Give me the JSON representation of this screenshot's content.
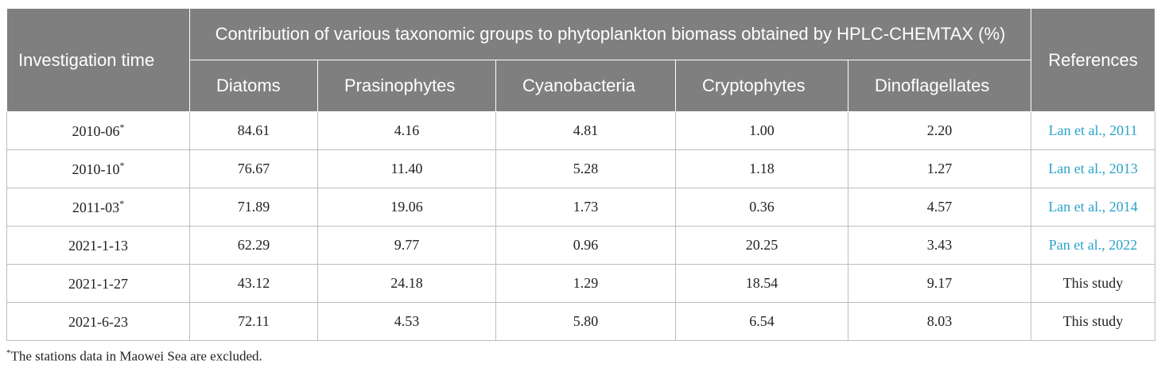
{
  "table": {
    "header": {
      "investigation_time": "Investigation time",
      "group_title": "Contribution of various taxonomic groups to phytoplankton biomass obtained by HPLC-CHEMTAX (%)",
      "references": "References",
      "groups": [
        "Diatoms",
        "Prasinophytes",
        "Cyanobacteria",
        "Cryptophytes",
        "Dinoflagellates"
      ]
    },
    "rows": [
      {
        "time": "2010-06",
        "mark": "*",
        "values": [
          "84.61",
          "4.16",
          "4.81",
          "1.00",
          "2.20"
        ],
        "ref": "Lan et al., 2011",
        "ref_link": true
      },
      {
        "time": "2010-10",
        "mark": "*",
        "values": [
          "76.67",
          "11.40",
          "5.28",
          "1.18",
          "1.27"
        ],
        "ref": "Lan et al., 2013",
        "ref_link": true
      },
      {
        "time": "2011-03",
        "mark": "*",
        "values": [
          "71.89",
          "19.06",
          "1.73",
          "0.36",
          "4.57"
        ],
        "ref": "Lan et al., 2014",
        "ref_link": true
      },
      {
        "time": "2021-1-13",
        "mark": "",
        "values": [
          "62.29",
          "9.77",
          "0.96",
          "20.25",
          "3.43"
        ],
        "ref": "Pan et al., 2022",
        "ref_link": true
      },
      {
        "time": "2021-1-27",
        "mark": "",
        "values": [
          "43.12",
          "24.18",
          "1.29",
          "18.54",
          "9.17"
        ],
        "ref": "This study",
        "ref_link": false
      },
      {
        "time": "2021-6-23",
        "mark": "",
        "values": [
          "72.11",
          "4.53",
          "5.80",
          "6.54",
          "8.03"
        ],
        "ref": "This study",
        "ref_link": false
      }
    ]
  },
  "footnote": {
    "mark": "*",
    "text": "The stations data in Maowei Sea are excluded."
  },
  "colors": {
    "header_bg": "#7f7f7f",
    "link": "#2aa3c9"
  }
}
